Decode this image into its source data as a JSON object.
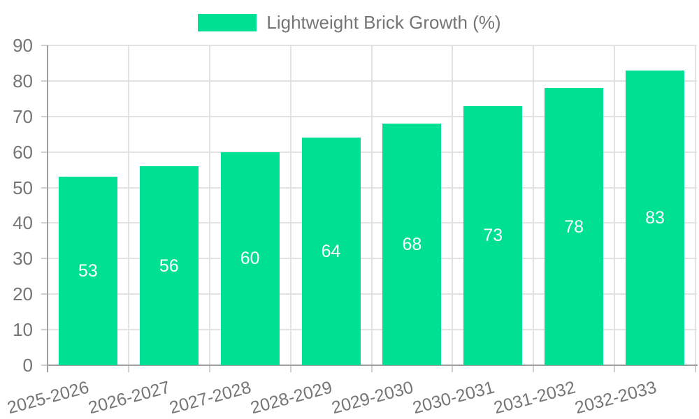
{
  "chart_data": {
    "type": "bar",
    "title": "",
    "legend": "Lightweight Brick Growth (%)",
    "categories": [
      "2025-2026",
      "2026-2027",
      "2027-2028",
      "2028-2029",
      "2029-2030",
      "2030-2031",
      "2031-2032",
      "2032-2033"
    ],
    "values": [
      53,
      56,
      60,
      64,
      68,
      73,
      78,
      83
    ],
    "xlabel": "",
    "ylabel": "",
    "ylim": [
      0,
      90
    ],
    "ytick_step": 10,
    "ytick_labels": [
      "0",
      "10",
      "20",
      "30",
      "40",
      "50",
      "60",
      "70",
      "80",
      "90"
    ],
    "grid": "both",
    "legend_position": "top-center",
    "x_tick_rotation_deg": -15,
    "value_label_position": "inside-center",
    "colors": {
      "bar": "#00E092",
      "grid": "#E2E2E2",
      "axis_line": "#9E9E9E",
      "tick_mark": "#CFCFCF",
      "tick_label": "#757575",
      "value_label": "#FFFFFF",
      "background": "#FFFFFF"
    }
  }
}
